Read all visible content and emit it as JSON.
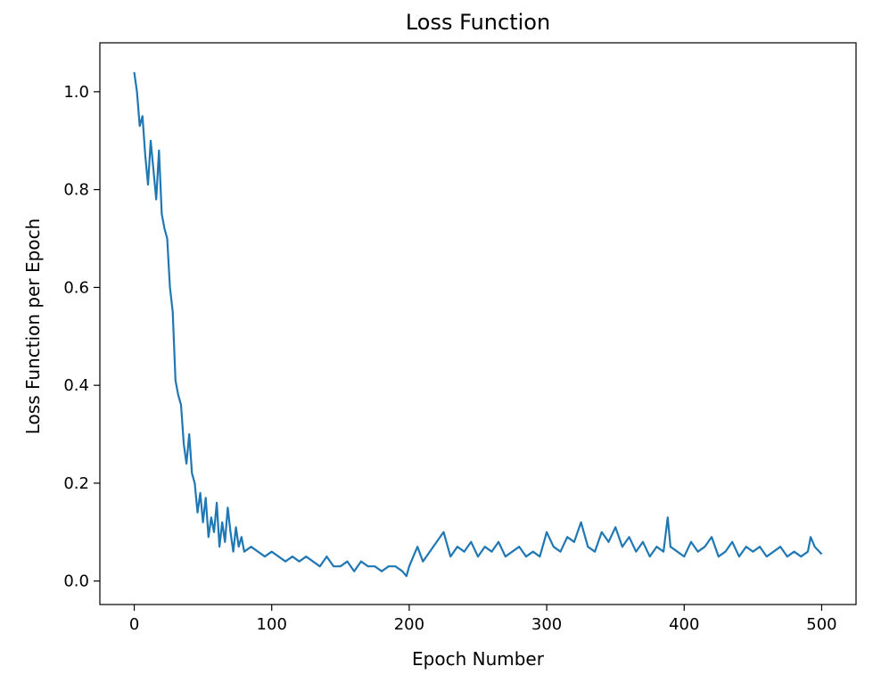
{
  "chart_data": {
    "type": "line",
    "title": "Loss Function",
    "xlabel": "Epoch Number",
    "ylabel": "Loss Function per Epoch",
    "xlim": [
      -25,
      525
    ],
    "ylim": [
      -0.048,
      1.1
    ],
    "xticks": [
      0,
      100,
      200,
      300,
      400,
      500
    ],
    "yticks": [
      0.0,
      0.2,
      0.4,
      0.6,
      0.8,
      1.0
    ],
    "ytick_labels": [
      "0.0",
      "0.2",
      "0.4",
      "0.6",
      "0.8",
      "1.0"
    ],
    "grid": false,
    "line_color": "#1f77b4",
    "series": [
      {
        "x": [
          0,
          2,
          4,
          6,
          8,
          10,
          12,
          14,
          16,
          18,
          20,
          22,
          24,
          26,
          28,
          30,
          32,
          34,
          36,
          38,
          40,
          42,
          44,
          46,
          48,
          50,
          52,
          54,
          56,
          58,
          60,
          62,
          64,
          66,
          68,
          70,
          72,
          74,
          76,
          78,
          80,
          85,
          90,
          95,
          100,
          105,
          110,
          115,
          120,
          125,
          130,
          135,
          140,
          145,
          150,
          155,
          160,
          165,
          170,
          175,
          180,
          185,
          190,
          195,
          198,
          200,
          203,
          206,
          210,
          215,
          220,
          225,
          230,
          235,
          240,
          245,
          250,
          255,
          260,
          265,
          270,
          275,
          280,
          285,
          290,
          295,
          300,
          305,
          310,
          315,
          320,
          325,
          330,
          335,
          340,
          345,
          350,
          355,
          360,
          365,
          370,
          375,
          380,
          385,
          388,
          390,
          395,
          400,
          405,
          410,
          415,
          420,
          425,
          430,
          435,
          440,
          445,
          450,
          455,
          460,
          465,
          470,
          475,
          480,
          485,
          490,
          492,
          495,
          500
        ],
        "y": [
          1.04,
          1.0,
          0.93,
          0.95,
          0.87,
          0.81,
          0.9,
          0.84,
          0.78,
          0.88,
          0.75,
          0.72,
          0.7,
          0.6,
          0.55,
          0.41,
          0.38,
          0.36,
          0.28,
          0.24,
          0.3,
          0.22,
          0.2,
          0.14,
          0.18,
          0.12,
          0.17,
          0.09,
          0.13,
          0.1,
          0.16,
          0.07,
          0.12,
          0.08,
          0.15,
          0.1,
          0.06,
          0.11,
          0.07,
          0.09,
          0.06,
          0.07,
          0.06,
          0.05,
          0.06,
          0.05,
          0.04,
          0.05,
          0.04,
          0.05,
          0.04,
          0.03,
          0.05,
          0.03,
          0.03,
          0.04,
          0.02,
          0.04,
          0.03,
          0.03,
          0.02,
          0.03,
          0.03,
          0.02,
          0.01,
          0.03,
          0.05,
          0.07,
          0.04,
          0.06,
          0.08,
          0.1,
          0.05,
          0.07,
          0.06,
          0.08,
          0.05,
          0.07,
          0.06,
          0.08,
          0.05,
          0.06,
          0.07,
          0.05,
          0.06,
          0.05,
          0.1,
          0.07,
          0.06,
          0.09,
          0.08,
          0.12,
          0.07,
          0.06,
          0.1,
          0.08,
          0.11,
          0.07,
          0.09,
          0.06,
          0.08,
          0.05,
          0.07,
          0.06,
          0.13,
          0.07,
          0.06,
          0.05,
          0.08,
          0.06,
          0.07,
          0.09,
          0.05,
          0.06,
          0.08,
          0.05,
          0.07,
          0.06,
          0.07,
          0.05,
          0.06,
          0.07,
          0.05,
          0.06,
          0.05,
          0.06,
          0.09,
          0.07,
          0.055
        ]
      }
    ]
  }
}
